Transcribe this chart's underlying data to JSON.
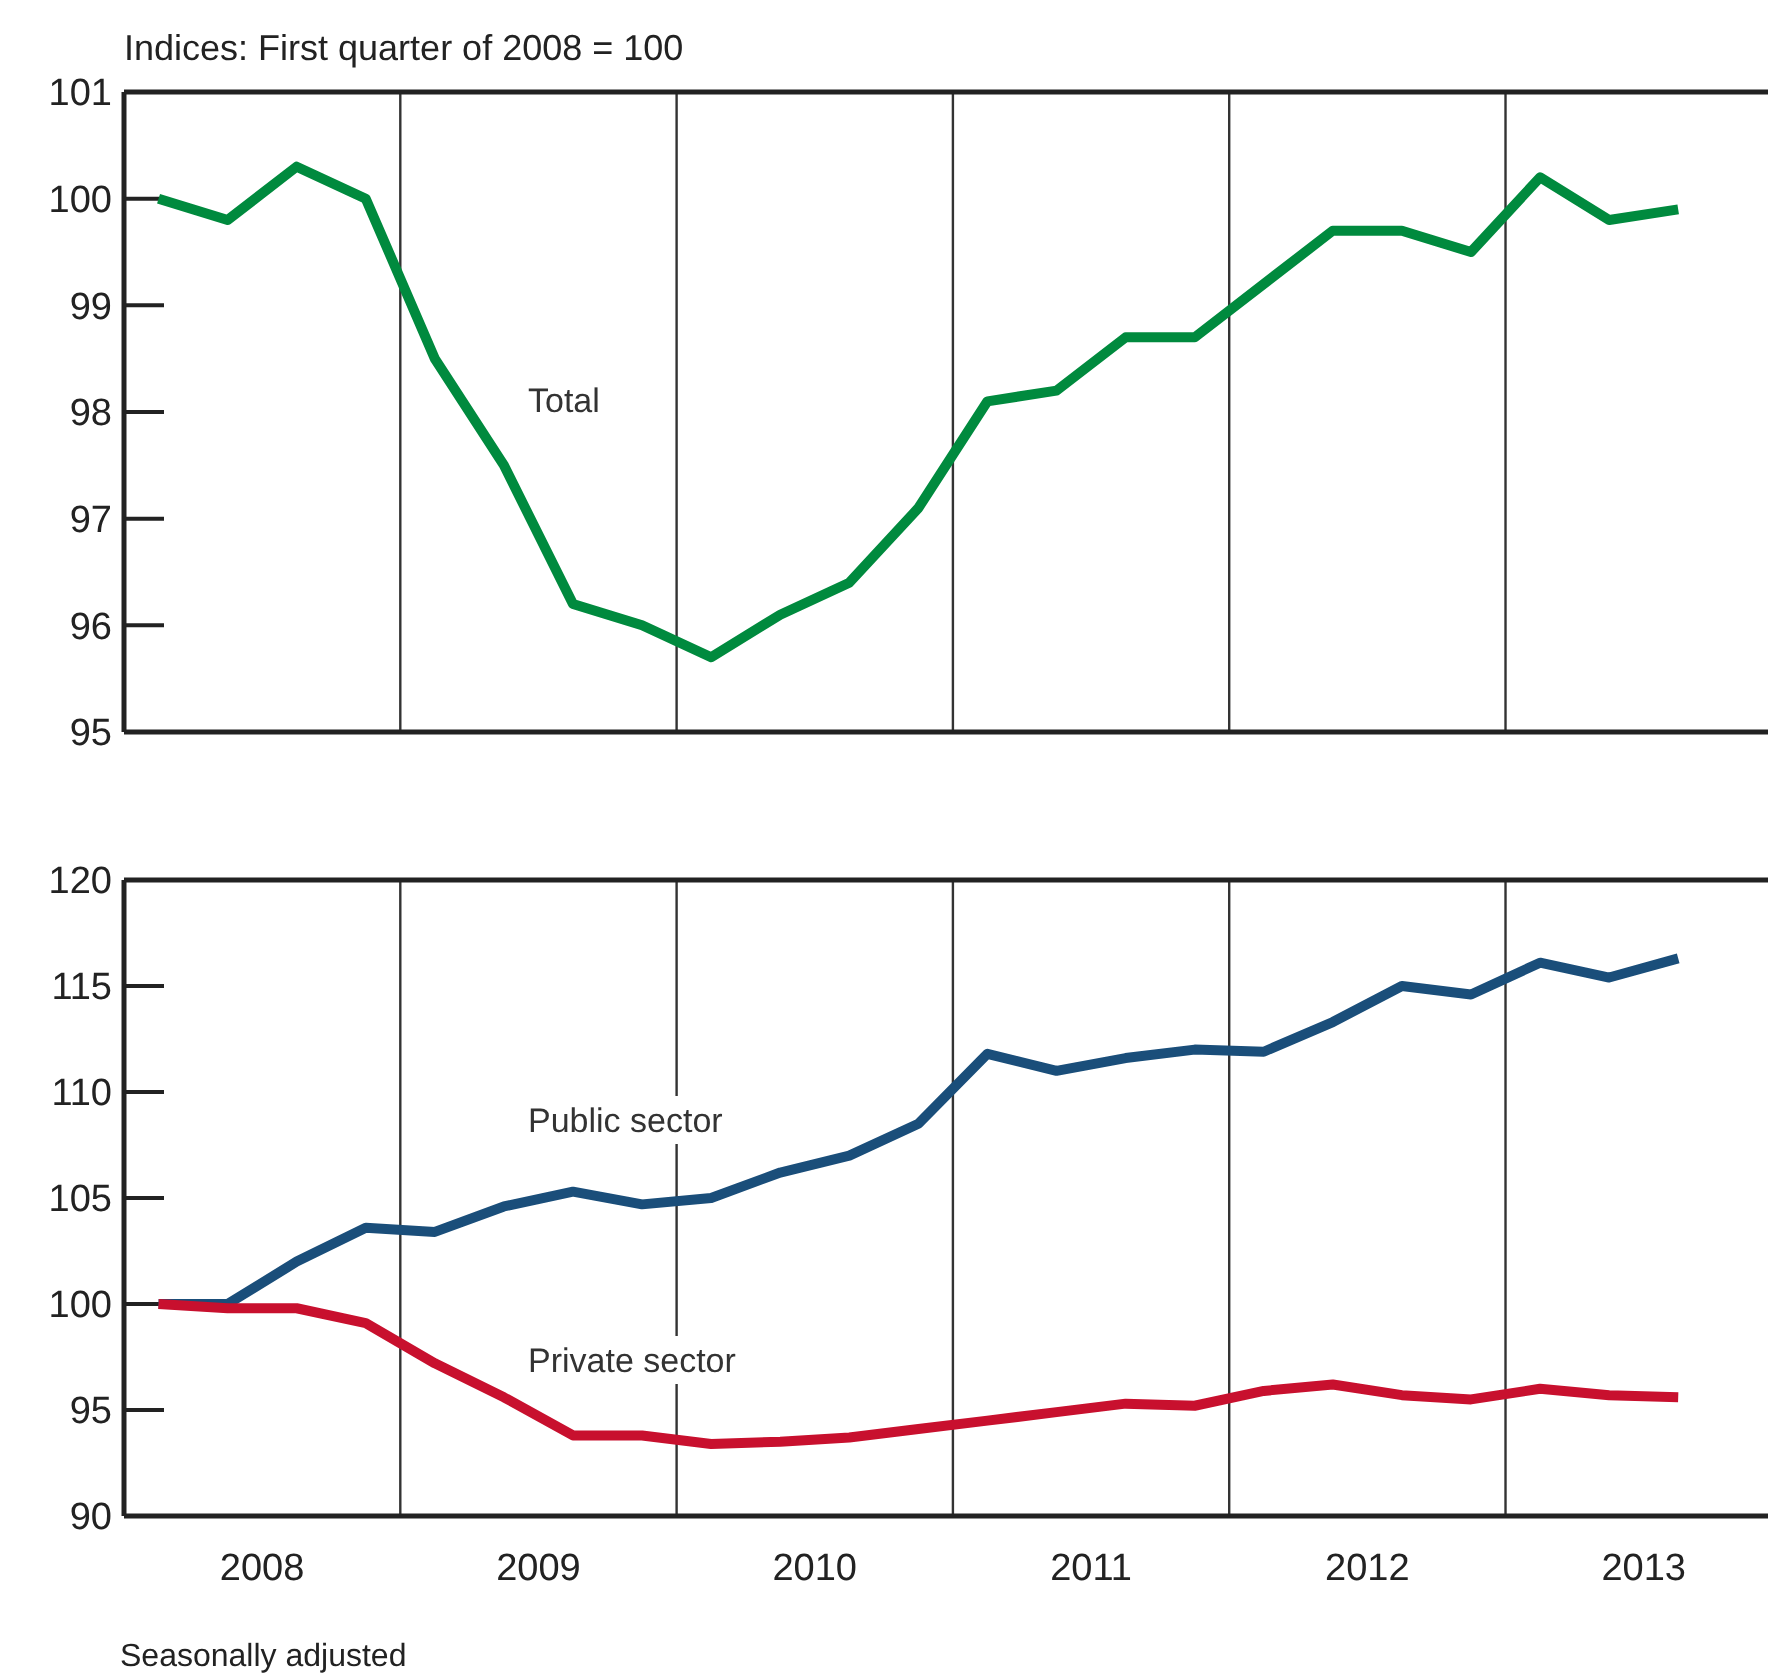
{
  "chart_data": [
    {
      "type": "line",
      "ylabel": "Indices: First quarter of 2008 = 100",
      "x": [
        2008.125,
        2008.375,
        2008.625,
        2008.875,
        2009.125,
        2009.375,
        2009.625,
        2009.875,
        2010.125,
        2010.375,
        2010.625,
        2010.875,
        2011.125,
        2011.375,
        2011.625,
        2011.875,
        2012.125,
        2012.375,
        2012.625,
        2012.875,
        2013.125,
        2013.375,
        2013.625
      ],
      "xlim": [
        2008,
        2013.95
      ],
      "ylim": [
        95,
        101
      ],
      "yticks": [
        95,
        96,
        97,
        98,
        99,
        100,
        101
      ],
      "tick_labels": "y",
      "grid": false,
      "ref_lines": [
        {
          "axis": "x",
          "value": 2009,
          "color": "#333333"
        },
        {
          "axis": "x",
          "value": 2010,
          "color": "#333333"
        },
        {
          "axis": "x",
          "value": 2011,
          "color": "#333333"
        },
        {
          "axis": "x",
          "value": 2012,
          "color": "#333333"
        },
        {
          "axis": "x",
          "value": 2013,
          "color": "#333333"
        }
      ],
      "series": [
        {
          "name": "Total",
          "color": "#008a3e",
          "values": [
            100,
            99.8,
            100.3,
            100,
            98.5,
            97.5,
            96.2,
            96.0,
            95.7,
            96.1,
            96.4,
            97.1,
            98.1,
            98.2,
            98.7,
            98.7,
            99.2,
            99.7,
            99.7,
            99.5,
            100.2,
            99.8,
            99.9
          ]
        }
      ]
    },
    {
      "type": "line",
      "annotations": [
        "Seasonally adjusted"
      ],
      "x": [
        2008.125,
        2008.375,
        2008.625,
        2008.875,
        2009.125,
        2009.375,
        2009.625,
        2009.875,
        2010.125,
        2010.375,
        2010.625,
        2010.875,
        2011.125,
        2011.375,
        2011.625,
        2011.875,
        2012.125,
        2012.375,
        2012.625,
        2012.875,
        2013.125,
        2013.375,
        2013.625
      ],
      "xlim": [
        2008,
        2013.95
      ],
      "xticks": [
        {
          "value": 2008.5,
          "label": "2008"
        },
        {
          "value": 2009.5,
          "label": "2009"
        },
        {
          "value": 2010.5,
          "label": "2010"
        },
        {
          "value": 2011.5,
          "label": "2011"
        },
        {
          "value": 2012.5,
          "label": "2012"
        },
        {
          "value": 2013.5,
          "label": "2013"
        }
      ],
      "ylim": [
        90,
        120
      ],
      "yticks": [
        90,
        95,
        100,
        105,
        110,
        115,
        120
      ],
      "grid": false,
      "ref_lines": [
        {
          "axis": "x",
          "value": 2009,
          "color": "#333333"
        },
        {
          "axis": "x",
          "value": 2010,
          "color": "#333333"
        },
        {
          "axis": "x",
          "value": 2011,
          "color": "#333333"
        },
        {
          "axis": "x",
          "value": 2012,
          "color": "#333333"
        },
        {
          "axis": "x",
          "value": 2013,
          "color": "#333333"
        }
      ],
      "series": [
        {
          "name": "Public sector",
          "color": "#1a4e7a",
          "values": [
            100,
            100,
            102,
            103.6,
            103.4,
            104.6,
            105.3,
            104.7,
            105.0,
            106.2,
            107.0,
            108.5,
            111.8,
            111.0,
            111.6,
            112.0,
            111.9,
            113.3,
            115.0,
            114.6,
            116.1,
            115.4,
            116.3
          ]
        },
        {
          "name": "Private sector",
          "color": "#c8102e",
          "values": [
            100,
            99.8,
            99.8,
            99.1,
            97.2,
            95.6,
            93.8,
            93.8,
            93.4,
            93.5,
            93.7,
            94.1,
            94.5,
            94.9,
            95.3,
            95.2,
            95.9,
            96.2,
            95.7,
            95.5,
            96.0,
            95.7,
            95.6
          ]
        }
      ]
    }
  ]
}
